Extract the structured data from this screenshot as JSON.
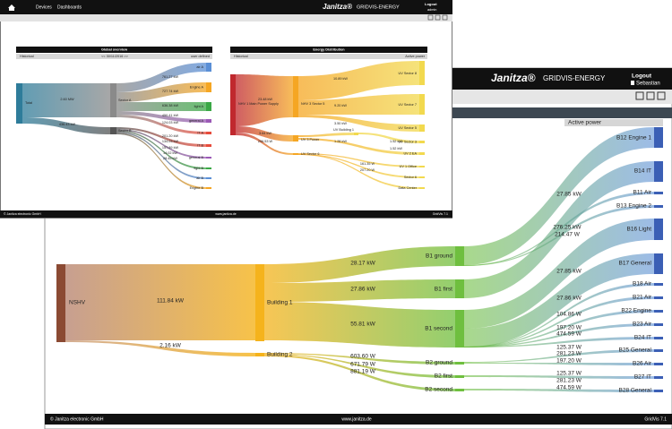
{
  "back_window": {
    "logo": "Janitza®",
    "product": "GRIDVIS-ENERGY",
    "logout": "Logout",
    "user": "Sebastian",
    "column_header": "Active power",
    "sankey": {
      "nodes": [
        "NSHV",
        "Building 1",
        "Building 2",
        "B1 ground",
        "B1 first",
        "B1 second",
        "B2 ground",
        "B2 first",
        "B2 second",
        "B12 Engine 1",
        "B14 IT",
        "B11 Air",
        "B13 Engine 2",
        "B16 Light",
        "B17 General",
        "B18 Air",
        "B21 Air",
        "B22 Engine",
        "B23 Air",
        "B24 IT",
        "B25 General",
        "B26 Air",
        "B27 IT",
        "B28 General"
      ],
      "link_labels": [
        "111.84 kW",
        "2.16 kW",
        "28.17 kW",
        "27.86 kW",
        "55.81 kW",
        "603.60 W",
        "671.79 W",
        "881.19 W",
        "27.85 kW",
        "276.25 kW",
        "214.47 W",
        "27.85 kW",
        "27.86 kW",
        "104.86 W",
        "197.20 W",
        "474.59 W",
        "125.37 W",
        "281.23 W",
        "197.20 W",
        "125.37 W",
        "281.23 W",
        "474.59 W"
      ]
    },
    "footer": {
      "copyright": "© Janitza electronic GmbH",
      "website": "www.janitza.de",
      "version": "GridVis 7.1"
    }
  },
  "front_window": {
    "nav": [
      "Devices",
      "Dashboards"
    ],
    "logo": "Janitza®",
    "product": "GRIDVIS-ENERGY",
    "logout": "Logout",
    "user": "admin",
    "panels": [
      {
        "title": "Global overview",
        "header": [
          "Historical",
          "<< 30/11/2016 >>",
          "user defined"
        ],
        "nodes": [
          "Total",
          "Sector A",
          "Sector B",
          "air A",
          "Engine A",
          "light A",
          "general A",
          "IT A",
          "IT B",
          "general B",
          "light B",
          "air B",
          "Engine B"
        ],
        "link_labels": [
          "2.60 MW",
          "436.43 kW",
          "761.27 kW",
          "727.74 kW",
          "636.38 kW",
          "450.41 kW",
          "124.03 kW",
          "201.20 kW",
          "134.03 kW",
          "157.89 kW",
          "14.02 kW",
          "28.45 kW"
        ]
      },
      {
        "title": "Energy Distribution",
        "header": [
          "Historical",
          "Active power"
        ],
        "nodes": [
          "NHV 1 Main Power Supply",
          "NHV 3 Sector 5",
          "UV 3 Power",
          "UV Sector 6",
          "UV Sector 8",
          "UV Sector 7",
          "UV Sector 5",
          "UV Sector 3",
          "UV 2 EA",
          "UV 1 Office",
          "Sector 6",
          "Data Center",
          "UV Building 1"
        ],
        "link_labels": [
          "23.48 kW",
          "3.64 kW",
          "296.53 W",
          "10.89 kW",
          "9.20 kW",
          "3.50 kW",
          "1.28 kW",
          "1.52 kW",
          "1.52 kW",
          "161.35 W",
          "207.20 W"
        ]
      }
    ],
    "footer": {
      "copyright": "© Janitza electronic GmbH",
      "website": "www.janitza.de",
      "version": "GridVis 7.1"
    }
  }
}
